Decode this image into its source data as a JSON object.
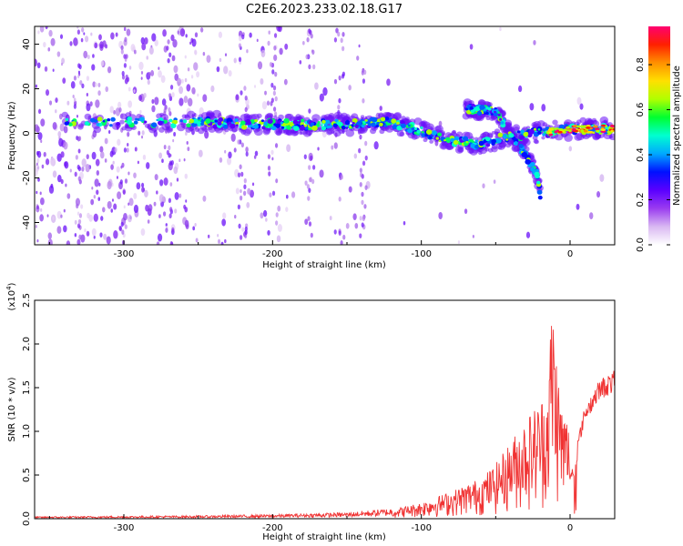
{
  "figure": {
    "title": "C2E6.2023.233.02.18.G17"
  },
  "chart_data": [
    {
      "type": "heatmap",
      "xlabel": "Height of straight line (km)",
      "ylabel": "Frequency (Hz)",
      "xlim": [
        -360,
        30
      ],
      "ylim": [
        -50,
        48
      ],
      "x_ticks": [
        -300,
        -200,
        -100,
        0
      ],
      "y_ticks": [
        -40,
        -20,
        0,
        20,
        40
      ],
      "grid": false,
      "colorbar": {
        "label": "Normalized spectral amplitude",
        "range": [
          0,
          0.97
        ],
        "ticks": [
          "0.0",
          "0.2",
          "0.4",
          "0.6",
          "0.8"
        ],
        "colors": [
          "#ffffff",
          "#d9b8f2",
          "#9a3cf0",
          "#5a00ff",
          "#0010ff",
          "#00a8ff",
          "#00ffd0",
          "#00ff30",
          "#b0ff00",
          "#ffe000",
          "#ff9000",
          "#ff2000",
          "#ff0070"
        ]
      },
      "ridge": [
        {
          "x": -330,
          "y": 5
        },
        {
          "x": -250,
          "y": 5
        },
        {
          "x": -200,
          "y": 4
        },
        {
          "x": -150,
          "y": 4
        },
        {
          "x": -120,
          "y": 5
        },
        {
          "x": -100,
          "y": 1
        },
        {
          "x": -80,
          "y": -3
        },
        {
          "x": -60,
          "y": -5
        },
        {
          "x": -45,
          "y": -2
        },
        {
          "x": -25,
          "y": 0
        },
        {
          "x": -10,
          "y": 1
        },
        {
          "x": 0,
          "y": 2
        },
        {
          "x": 30,
          "y": 2
        }
      ],
      "branch": [
        {
          "x": -70,
          "y": 11
        },
        {
          "x": -50,
          "y": 10
        },
        {
          "x": -35,
          "y": -5
        },
        {
          "x": -22,
          "y": -18
        },
        {
          "x": -20,
          "y": -28
        }
      ]
    },
    {
      "type": "line",
      "xlabel": "Height of straight line (km)",
      "ylabel": "SNR (10 * v/v)",
      "multiplier": "(x10",
      "multiplier_exp": "4",
      "multiplier_close": ")",
      "xlim": [
        -360,
        30
      ],
      "ylim": [
        0,
        2.5
      ],
      "x_ticks": [
        -300,
        -200,
        -100,
        0
      ],
      "y_ticks": [
        "0.0",
        "0.5",
        "1.0",
        "1.5",
        "2.0",
        "2.5"
      ],
      "grid": false,
      "series": [
        {
          "color": "#f03232",
          "envelope": [
            {
              "x": -360,
              "y": 0.02
            },
            {
              "x": -250,
              "y": 0.03
            },
            {
              "x": -200,
              "y": 0.04
            },
            {
              "x": -150,
              "y": 0.06
            },
            {
              "x": -120,
              "y": 0.1
            },
            {
              "x": -100,
              "y": 0.18
            },
            {
              "x": -80,
              "y": 0.3
            },
            {
              "x": -60,
              "y": 0.45
            },
            {
              "x": -50,
              "y": 0.6
            },
            {
              "x": -40,
              "y": 0.85
            },
            {
              "x": -30,
              "y": 1.1
            },
            {
              "x": -20,
              "y": 1.3
            },
            {
              "x": -15,
              "y": 1.5
            },
            {
              "x": -12,
              "y": 2.5
            },
            {
              "x": -8,
              "y": 1.6
            },
            {
              "x": -5,
              "y": 1.2
            },
            {
              "x": 0,
              "y": 1.1
            },
            {
              "x": 5,
              "y": 0.9
            },
            {
              "x": 10,
              "y": 1.3
            },
            {
              "x": 20,
              "y": 1.6
            },
            {
              "x": 30,
              "y": 1.7
            }
          ]
        }
      ]
    }
  ]
}
